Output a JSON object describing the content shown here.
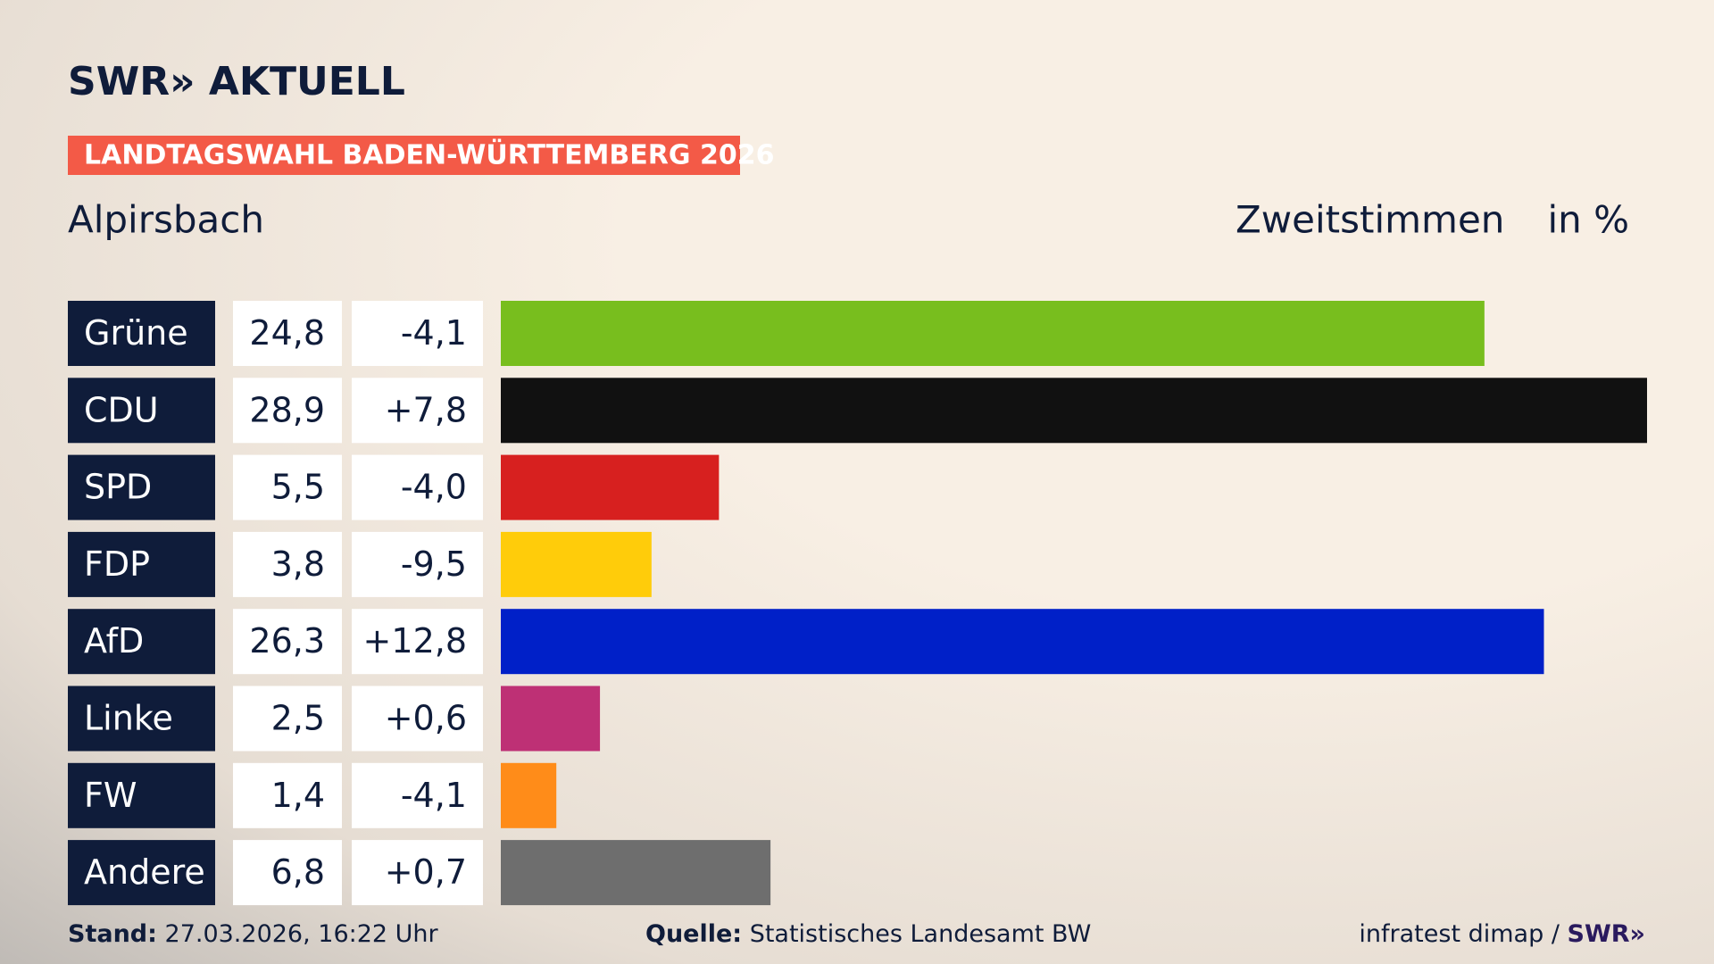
{
  "header": {
    "logo": "SWR» AKTUELL",
    "badge": "LANDTAGSWAHL BADEN-WÜRTTEMBERG 2026"
  },
  "chart_data": {
    "type": "bar",
    "orientation": "horizontal",
    "title": "Alpirsbach",
    "subtitle": "Zweitstimmen",
    "unit": "in %",
    "categories": [
      "Grüne",
      "CDU",
      "SPD",
      "FDP",
      "AfD",
      "Linke",
      "FW",
      "Andere"
    ],
    "values": [
      24.8,
      28.9,
      5.5,
      3.8,
      26.3,
      2.5,
      1.4,
      6.8
    ],
    "value_labels": [
      "24,8",
      "28,9",
      "5,5",
      "3,8",
      "26,3",
      "2,5",
      "1,4",
      "6,8"
    ],
    "changes": [
      -4.1,
      7.8,
      -4.0,
      -9.5,
      12.8,
      0.6,
      -4.1,
      0.7
    ],
    "change_labels": [
      "-4,1",
      "+7,8",
      "-4,0",
      "-9,5",
      "+12,8",
      "+0,6",
      "-4,1",
      "+0,7"
    ],
    "colors": [
      "#78be1e",
      "#111111",
      "#d7201f",
      "#ffcc0a",
      "#0020c8",
      "#be3075",
      "#ff8c19",
      "#6e6e6e"
    ]
  },
  "footer": {
    "stand_label": "Stand:",
    "stand": "27.03.2026, 16:22 Uhr",
    "source_label": "Quelle:",
    "source": "Statistisches Landesamt BW",
    "credit": "infratest dimap /",
    "credit_logo": "SWR»"
  }
}
